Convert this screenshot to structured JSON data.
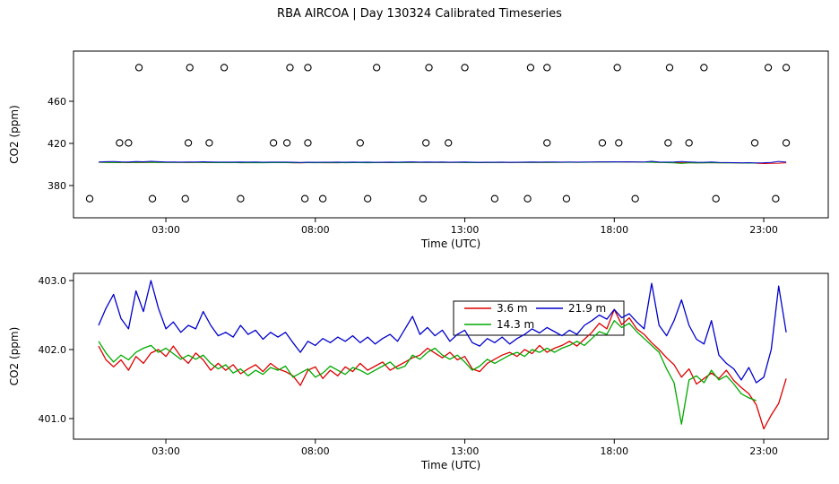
{
  "page": {
    "title": "RBA AIRCOA | Day 130324  Calibrated Timeseries",
    "background": "#ffffff"
  },
  "chart_data": [
    {
      "id": "overview-panel",
      "type": "scatter",
      "title": "RBA AIRCOA | Day 130324  Calibrated Timeseries",
      "xlabel": "Time (UTC)",
      "ylabel": "CO2 (ppm)",
      "ylim": [
        362,
        500
      ],
      "xlim_hours": [
        0,
        24.5
      ],
      "grid": false,
      "yticks": {
        "values": [
          380,
          420,
          460
        ],
        "labels": [
          "380",
          "420",
          "460"
        ]
      },
      "xticks": {
        "hours": [
          3,
          8,
          13,
          18,
          23
        ],
        "labels": [
          "03:00",
          "08:00",
          "13:00",
          "18:00",
          "23:00"
        ]
      },
      "marker": {
        "shape": "open-circle",
        "color": "#000000",
        "radius_px": 3.6
      },
      "overlay_series_from_detail_panel": true,
      "calibrations": [
        {
          "level_ppm": 492.0,
          "times_hours": [
            2.1,
            3.8,
            4.95,
            7.15,
            7.75,
            10.05,
            11.8,
            13.0,
            15.2,
            15.75,
            18.1,
            19.85,
            21.0,
            23.15,
            23.75
          ]
        },
        {
          "level_ppm": 420.5,
          "times_hours": [
            1.45,
            1.75,
            3.75,
            4.45,
            6.6,
            7.05,
            7.75,
            9.5,
            11.7,
            12.45,
            15.75,
            17.6,
            18.15,
            19.8,
            20.5,
            22.7,
            23.75
          ]
        },
        {
          "level_ppm": 367.5,
          "times_hours": [
            0.45,
            2.55,
            3.65,
            5.5,
            7.65,
            8.25,
            9.75,
            11.6,
            14.0,
            15.1,
            16.4,
            18.7,
            21.4,
            23.4
          ]
        }
      ]
    },
    {
      "id": "detail-panel",
      "type": "line",
      "xlabel": "Time (UTC)",
      "ylabel": "CO2 (ppm)",
      "ylim": [
        400.6,
        403.1
      ],
      "grid": false,
      "yticks": {
        "values": [
          401.0,
          402.0,
          403.0
        ],
        "labels": [
          "401.0",
          "402.0",
          "403.0"
        ]
      },
      "xticks": {
        "hours": [
          3,
          8,
          13,
          18,
          23
        ],
        "labels": [
          "03:00",
          "08:00",
          "13:00",
          "18:00",
          "23:00"
        ]
      },
      "legend": {
        "position": "top-center",
        "border": true,
        "entries": [
          {
            "label": "3.6 m",
            "color": "#dd0000"
          },
          {
            "label": "14.3 m",
            "color": "#00aa00"
          },
          {
            "label": "21.9 m",
            "color": "#0000cc"
          }
        ]
      },
      "series": [
        {
          "name": "3.6 m",
          "color": "#dd0000",
          "t_start_hours": 0.75,
          "t_step_hours": 0.25,
          "values": [
            402.05,
            401.85,
            401.75,
            401.85,
            401.7,
            401.9,
            401.8,
            401.95,
            402,
            401.9,
            402.05,
            401.9,
            401.8,
            401.95,
            401.85,
            401.7,
            401.8,
            401.7,
            401.78,
            401.65,
            401.72,
            401.78,
            401.68,
            401.8,
            401.72,
            401.68,
            401.62,
            401.48,
            401.7,
            401.75,
            401.58,
            401.7,
            401.62,
            401.75,
            401.68,
            401.8,
            401.7,
            401.76,
            401.82,
            401.7,
            401.76,
            401.82,
            401.88,
            401.92,
            402.02,
            401.95,
            401.88,
            401.96,
            401.85,
            401.9,
            401.72,
            401.68,
            401.8,
            401.86,
            401.92,
            401.96,
            401.9,
            402,
            401.94,
            402.06,
            401.96,
            402.02,
            402.06,
            402.12,
            402.05,
            402.15,
            402.25,
            402.38,
            402.3,
            402.58,
            402.36,
            402.46,
            402.3,
            402.22,
            402.1,
            402,
            401.88,
            401.78,
            401.6,
            401.72,
            401.5,
            401.58,
            401.66,
            401.58,
            401.7,
            401.55,
            401.45,
            401.36,
            401.2,
            400.85,
            401.05,
            401.22,
            401.58
          ]
        },
        {
          "name": "14.3 m",
          "color": "#00aa00",
          "t_start_hours": 0.75,
          "t_step_hours": 0.25,
          "values": [
            402.12,
            401.95,
            401.82,
            401.92,
            401.85,
            401.96,
            402.02,
            402.06,
            401.96,
            402.02,
            401.94,
            401.86,
            401.92,
            401.86,
            401.92,
            401.8,
            401.72,
            401.78,
            401.66,
            401.72,
            401.62,
            401.7,
            401.64,
            401.74,
            401.7,
            401.76,
            401.6,
            401.66,
            401.72,
            401.6,
            401.66,
            401.76,
            401.7,
            401.64,
            401.74,
            401.7,
            401.64,
            401.7,
            401.76,
            401.82,
            401.72,
            401.76,
            401.92,
            401.86,
            401.96,
            402.02,
            401.92,
            401.86,
            401.92,
            401.82,
            401.7,
            401.76,
            401.86,
            401.8,
            401.86,
            401.92,
            401.96,
            401.9,
            402,
            401.96,
            402.02,
            401.96,
            402.02,
            402.06,
            402.12,
            402.06,
            402.16,
            402.26,
            402.22,
            402.42,
            402.32,
            402.38,
            402.26,
            402.16,
            402.06,
            401.96,
            401.72,
            401.52,
            400.92,
            401.56,
            401.62,
            401.52,
            401.7,
            401.56,
            401.62,
            401.5,
            401.36,
            401.3,
            401.26
          ]
        },
        {
          "name": "21.9 m",
          "color": "#0000cc",
          "t_start_hours": 0.75,
          "t_step_hours": 0.25,
          "values": [
            402.35,
            402.6,
            402.8,
            402.45,
            402.3,
            402.85,
            402.55,
            403,
            402.6,
            402.3,
            402.4,
            402.25,
            402.35,
            402.3,
            402.55,
            402.35,
            402.2,
            402.25,
            402.18,
            402.35,
            402.22,
            402.28,
            402.15,
            402.25,
            402.18,
            402.25,
            402.1,
            401.96,
            402.12,
            402.06,
            402.16,
            402.1,
            402.18,
            402.12,
            402.2,
            402.1,
            402.18,
            402.08,
            402.16,
            402.22,
            402.12,
            402.3,
            402.48,
            402.22,
            402.32,
            402.2,
            402.28,
            402.12,
            402.22,
            402.28,
            402.1,
            402.05,
            402.16,
            402.1,
            402.18,
            402.08,
            402.16,
            402.22,
            402.3,
            402.24,
            402.32,
            402.26,
            402.2,
            402.28,
            402.22,
            402.35,
            402.42,
            402.5,
            402.44,
            402.58,
            402.46,
            402.52,
            402.4,
            402.3,
            402.96,
            402.35,
            402.2,
            402.42,
            402.72,
            402.35,
            402.15,
            402.08,
            402.42,
            401.92,
            401.8,
            401.72,
            401.56,
            401.74,
            401.52,
            401.6,
            402,
            402.92,
            402.25
          ]
        }
      ]
    }
  ]
}
